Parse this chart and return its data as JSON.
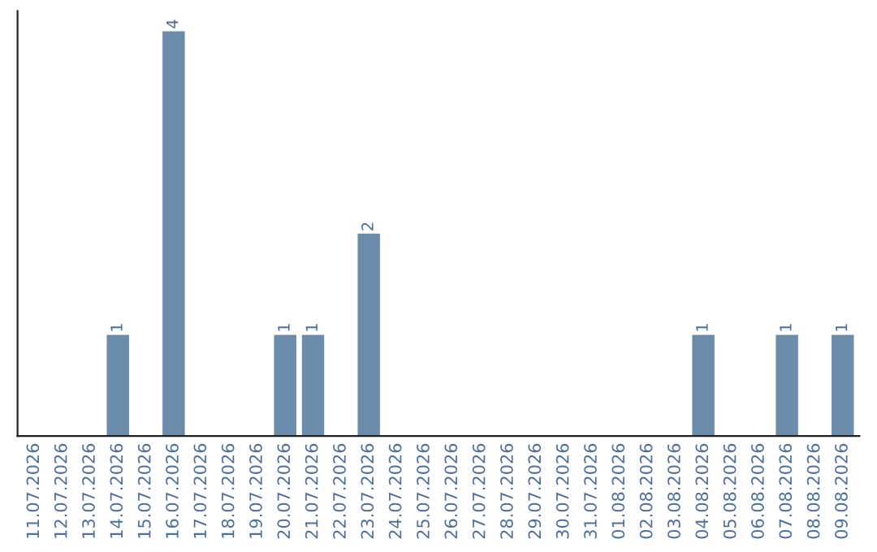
{
  "chart_data": {
    "type": "bar",
    "categories": [
      "11.07.2026",
      "12.07.2026",
      "13.07.2026",
      "14.07.2026",
      "15.07.2026",
      "16.07.2026",
      "17.07.2026",
      "18.07.2026",
      "19.07.2026",
      "20.07.2026",
      "21.07.2026",
      "22.07.2026",
      "23.07.2026",
      "24.07.2026",
      "25.07.2026",
      "26.07.2026",
      "27.07.2026",
      "28.07.2026",
      "29.07.2026",
      "30.07.2026",
      "31.07.2026",
      "01.08.2026",
      "02.08.2026",
      "03.08.2026",
      "04.08.2026",
      "05.08.2026",
      "06.08.2026",
      "07.08.2026",
      "08.08.2026",
      "09.08.2026"
    ],
    "values": [
      0,
      0,
      0,
      1,
      0,
      4,
      0,
      0,
      0,
      1,
      1,
      0,
      2,
      0,
      0,
      0,
      0,
      0,
      0,
      0,
      0,
      0,
      0,
      0,
      1,
      0,
      0,
      1,
      0,
      1
    ],
    "value_labels": [
      null,
      null,
      null,
      "1",
      null,
      "4",
      null,
      null,
      null,
      "1",
      "1",
      null,
      "2",
      null,
      null,
      null,
      null,
      null,
      null,
      null,
      null,
      null,
      null,
      null,
      "1",
      null,
      null,
      "1",
      null,
      "1"
    ],
    "color": "#6b8cab",
    "grid": false,
    "legend": false
  }
}
